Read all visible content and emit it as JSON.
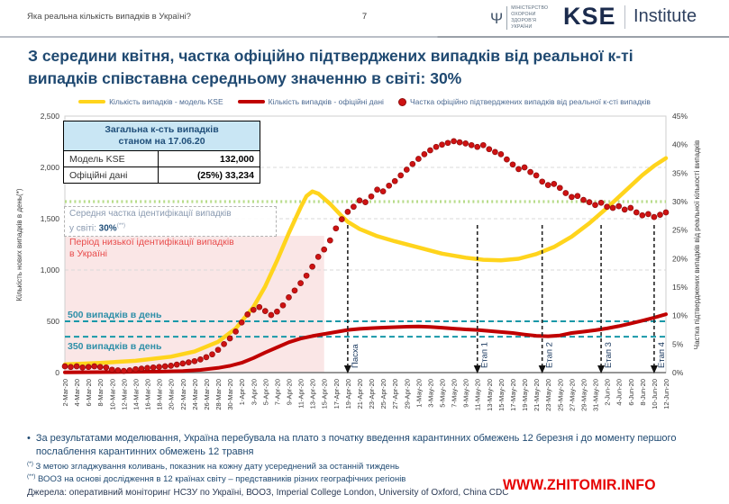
{
  "header": {
    "left_title": "Яка реальна кількість випадків в Україні?",
    "page_number": "7",
    "moh_logo": {
      "line1": "МІНІСТЕРСТВО",
      "line2": "ОХОРОНИ",
      "line3": "ЗДОРОВ'Я",
      "line4": "УКРАЇНИ"
    },
    "kse_logo": {
      "name": "KSE",
      "suffix": "Institute"
    }
  },
  "title": "З середини квітня, частка офіційно підтверджених випадків від реальної к-ті випадків співставна середньому значенню в світі: 30%",
  "legend": {
    "items": [
      {
        "label": "Кількість випадків - модель KSE",
        "color": "#FFD41C",
        "swatch": "line"
      },
      {
        "label": "Кількість випадків - офіційні дані",
        "color": "#C00000",
        "swatch": "line"
      },
      {
        "label": "Частка офіційно підтверджених випадків від реальної к-сті випадків",
        "color": "#CE1212",
        "swatch": "dot"
      }
    ]
  },
  "summary_table": {
    "header_line1": "Загальна к-сть випадків",
    "header_line2": "станом на 17.06.20",
    "rows": [
      {
        "label": "Модель KSE",
        "value_prefix": "",
        "value": "132,000"
      },
      {
        "label": "Офіційні дані",
        "value_prefix": "(25%) ",
        "value": "33,234"
      }
    ]
  },
  "annotations": {
    "avg_share": {
      "line1": "Середня частка ідентифікації випадків",
      "line2_prefix": "у світі: ",
      "value": "30%",
      "marker": "(**)"
    },
    "low_identification": {
      "line1": "Період низької ідентифікації випадків",
      "line2": "в Україні"
    }
  },
  "notes": {
    "bullet_mark": "•",
    "bullet": "За результатами моделювання, Україна перебувала на плато з початку введення карантинних обмежень 12 березня і до моменту першого послаблення карантинних обмежень 12 травня",
    "footnotes": [
      {
        "marker": "(*)",
        "text": "З метою згладжування коливань, показник на кожну дату усереднений за останній тиждень"
      },
      {
        "marker": "(**)",
        "text": "ВООЗ на основі дослідження в 12 країнах світу – представників різних географічних регіонів"
      }
    ],
    "sources": "Джерела: оперативний моніторинг НСЗУ по Україні, ВООЗ, Imperial College London, University of Oxford, China CDC"
  },
  "watermark": "WWW.ZHITOMIR.INFO",
  "chart_data": {
    "type": "line",
    "x_axis": {
      "days_total": 102,
      "tick_day_step": 2,
      "tick_labels": [
        "2-Mar-20",
        "4-Mar-20",
        "6-Mar-20",
        "8-Mar-20",
        "10-Mar-20",
        "12-Mar-20",
        "14-Mar-20",
        "16-Mar-20",
        "18-Mar-20",
        "20-Mar-20",
        "22-Mar-20",
        "24-Mar-20",
        "26-Mar-20",
        "28-Mar-20",
        "30-Mar-20",
        "1-Apr-20",
        "3-Apr-20",
        "5-Apr-20",
        "7-Apr-20",
        "9-Apr-20",
        "11-Apr-20",
        "13-Apr-20",
        "15-Apr-20",
        "17-Apr-20",
        "19-Apr-20",
        "21-Apr-20",
        "23-Apr-20",
        "25-Apr-20",
        "27-Apr-20",
        "29-Apr-20",
        "1-May-20",
        "3-May-20",
        "5-May-20",
        "7-May-20",
        "9-May-20",
        "11-May-20",
        "13-May-20",
        "15-May-20",
        "17-May-20",
        "19-May-20",
        "21-May-20",
        "23-May-20",
        "25-May-20",
        "27-May-20",
        "29-May-20",
        "31-May-20",
        "2-Jun-20",
        "4-Jun-20",
        "6-Jun-20",
        "8-Jun-20",
        "10-Jun-20",
        "12-Jun-20"
      ]
    },
    "y_left": {
      "label": "Кількість нових випадків в день",
      "marker": "(*)",
      "min": 0,
      "max": 2500,
      "ticks": [
        "0",
        "500",
        "1,000",
        "1,500",
        "2,000",
        "2,500"
      ],
      "tick_step": 500
    },
    "y_right": {
      "label": "Частка підтверджених випадків від реальної кількості випадків",
      "min": 0,
      "max": 45,
      "ticks": [
        "0%",
        "5%",
        "10%",
        "15%",
        "20%",
        "25%",
        "30%",
        "35%",
        "40%",
        "45%"
      ],
      "tick_step": 5
    },
    "grid": "horizontal-dashed",
    "legend_position": "top",
    "series": [
      {
        "name": "Кількість випадків - модель KSE",
        "axis": "left",
        "style": "line",
        "color": "#FFD41C",
        "width": 4.5,
        "points": [
          [
            0,
            80
          ],
          [
            6,
            95
          ],
          [
            12,
            115
          ],
          [
            18,
            155
          ],
          [
            22,
            205
          ],
          [
            26,
            300
          ],
          [
            29,
            430
          ],
          [
            32,
            640
          ],
          [
            34,
            840
          ],
          [
            36,
            1090
          ],
          [
            38,
            1360
          ],
          [
            40,
            1610
          ],
          [
            41,
            1720
          ],
          [
            42,
            1765
          ],
          [
            43,
            1745
          ],
          [
            45,
            1645
          ],
          [
            47,
            1525
          ],
          [
            48,
            1470
          ],
          [
            50,
            1400
          ],
          [
            53,
            1330
          ],
          [
            56,
            1280
          ],
          [
            60,
            1220
          ],
          [
            64,
            1160
          ],
          [
            68,
            1120
          ],
          [
            71,
            1100
          ],
          [
            74,
            1095
          ],
          [
            77,
            1110
          ],
          [
            80,
            1155
          ],
          [
            83,
            1225
          ],
          [
            86,
            1325
          ],
          [
            89,
            1455
          ],
          [
            92,
            1605
          ],
          [
            95,
            1765
          ],
          [
            98,
            1925
          ],
          [
            100,
            2015
          ],
          [
            102,
            2090
          ]
        ]
      },
      {
        "name": "Кількість випадків - офіційні дані",
        "axis": "left",
        "style": "line",
        "color": "#C00000",
        "width": 4,
        "points": [
          [
            0,
            3
          ],
          [
            10,
            6
          ],
          [
            16,
            10
          ],
          [
            20,
            16
          ],
          [
            23,
            26
          ],
          [
            26,
            46
          ],
          [
            28,
            66
          ],
          [
            30,
            96
          ],
          [
            32,
            142
          ],
          [
            34,
            196
          ],
          [
            36,
            246
          ],
          [
            38,
            296
          ],
          [
            40,
            332
          ],
          [
            42,
            356
          ],
          [
            44,
            376
          ],
          [
            46,
            396
          ],
          [
            48,
            416
          ],
          [
            50,
            426
          ],
          [
            52,
            433
          ],
          [
            54,
            439
          ],
          [
            56,
            443
          ],
          [
            58,
            447
          ],
          [
            60,
            449
          ],
          [
            62,
            445
          ],
          [
            64,
            438
          ],
          [
            66,
            429
          ],
          [
            68,
            421
          ],
          [
            70,
            416
          ],
          [
            72,
            406
          ],
          [
            74,
            396
          ],
          [
            76,
            386
          ],
          [
            78,
            371
          ],
          [
            80,
            359
          ],
          [
            82,
            354
          ],
          [
            84,
            362
          ],
          [
            86,
            386
          ],
          [
            88,
            399
          ],
          [
            90,
            413
          ],
          [
            92,
            431
          ],
          [
            94,
            453
          ],
          [
            96,
            479
          ],
          [
            98,
            506
          ],
          [
            100,
            536
          ],
          [
            102,
            568
          ]
        ]
      },
      {
        "name": "Частка офіційно підтверджених випадків від реальної к-сті випадків",
        "axis": "right",
        "style": "scatter",
        "color": "#CE1212",
        "points": [
          [
            0,
            1.1
          ],
          [
            1,
            1.0
          ],
          [
            2,
            1.1
          ],
          [
            3,
            0.9
          ],
          [
            4,
            1.0
          ],
          [
            5,
            1.1
          ],
          [
            6,
            1.0
          ],
          [
            7,
            0.9
          ],
          [
            8,
            0.5
          ],
          [
            9,
            0.4
          ],
          [
            10,
            0.3
          ],
          [
            11,
            0.4
          ],
          [
            12,
            0.6
          ],
          [
            13,
            0.7
          ],
          [
            14,
            0.8
          ],
          [
            15,
            0.9
          ],
          [
            16,
            1.0
          ],
          [
            17,
            1.1
          ],
          [
            18,
            1.2
          ],
          [
            19,
            1.4
          ],
          [
            20,
            1.6
          ],
          [
            21,
            1.8
          ],
          [
            22,
            2.0
          ],
          [
            23,
            2.3
          ],
          [
            24,
            2.7
          ],
          [
            25,
            3.2
          ],
          [
            26,
            4.0
          ],
          [
            27,
            5.0
          ],
          [
            28,
            6.0
          ],
          [
            29,
            7.2
          ],
          [
            30,
            8.8
          ],
          [
            31,
            10.2
          ],
          [
            32,
            11.0
          ],
          [
            33,
            11.5
          ],
          [
            34,
            10.8
          ],
          [
            35,
            10.1
          ],
          [
            36,
            10.7
          ],
          [
            37,
            11.8
          ],
          [
            38,
            13.2
          ],
          [
            39,
            14.4
          ],
          [
            40,
            15.7
          ],
          [
            41,
            17.0
          ],
          [
            42,
            18.6
          ],
          [
            43,
            20.3
          ],
          [
            44,
            21.6
          ],
          [
            45,
            23.2
          ],
          [
            46,
            25.3
          ],
          [
            47,
            26.9
          ],
          [
            48,
            28.2
          ],
          [
            49,
            29.1
          ],
          [
            50,
            30.2
          ],
          [
            51,
            29.9
          ],
          [
            52,
            30.9
          ],
          [
            53,
            32.1
          ],
          [
            54,
            31.8
          ],
          [
            55,
            32.8
          ],
          [
            56,
            33.6
          ],
          [
            57,
            34.6
          ],
          [
            58,
            35.6
          ],
          [
            59,
            36.6
          ],
          [
            60,
            37.5
          ],
          [
            61,
            38.3
          ],
          [
            62,
            39.0
          ],
          [
            63,
            39.6
          ],
          [
            64,
            40.0
          ],
          [
            65,
            40.3
          ],
          [
            66,
            40.6
          ],
          [
            67,
            40.4
          ],
          [
            68,
            40.2
          ],
          [
            69,
            39.9
          ],
          [
            70,
            39.6
          ],
          [
            71,
            39.9
          ],
          [
            72,
            39.2
          ],
          [
            73,
            38.7
          ],
          [
            74,
            38.3
          ],
          [
            75,
            37.4
          ],
          [
            76,
            36.5
          ],
          [
            77,
            35.7
          ],
          [
            78,
            36.0
          ],
          [
            79,
            35.2
          ],
          [
            80,
            34.6
          ],
          [
            81,
            33.5
          ],
          [
            82,
            32.9
          ],
          [
            83,
            33.1
          ],
          [
            84,
            32.4
          ],
          [
            85,
            31.5
          ],
          [
            86,
            30.8
          ],
          [
            87,
            31.0
          ],
          [
            88,
            30.3
          ],
          [
            89,
            29.9
          ],
          [
            90,
            29.4
          ],
          [
            91,
            29.8
          ],
          [
            92,
            29.1
          ],
          [
            93,
            28.9
          ],
          [
            94,
            29.2
          ],
          [
            95,
            28.6
          ],
          [
            96,
            28.9
          ],
          [
            97,
            28.1
          ],
          [
            98,
            27.6
          ],
          [
            99,
            27.8
          ],
          [
            100,
            27.3
          ],
          [
            101,
            27.7
          ],
          [
            102,
            28.1
          ]
        ]
      }
    ],
    "reference_lines": [
      {
        "label": "Середня частка ідентифікації випадків у світі: 30%",
        "axis": "right",
        "value": 30,
        "color": "#B5DB84",
        "style": "dotted",
        "label_pos": "none"
      },
      {
        "label": "500 випадків в день",
        "axis": "left",
        "value": 500,
        "color": "#1898A8",
        "style": "dashed",
        "label_pos": "above"
      },
      {
        "label": "350 випадків в день",
        "axis": "left",
        "value": 350,
        "color": "#1898A8",
        "style": "dashed",
        "label_pos": "below"
      }
    ],
    "event_lines": [
      {
        "label": "Пасха",
        "day": 48
      },
      {
        "label": "Етап 1",
        "day": 70
      },
      {
        "label": "Етап 2",
        "day": 81
      },
      {
        "label": "Етап 3",
        "day": 91
      },
      {
        "label": "Етап 4",
        "day": 100
      }
    ],
    "shaded_region": {
      "label": "Період низької ідентифікації випадків в Україні",
      "day_start": 0,
      "day_end": 44,
      "color": "#FAE6E6"
    }
  }
}
